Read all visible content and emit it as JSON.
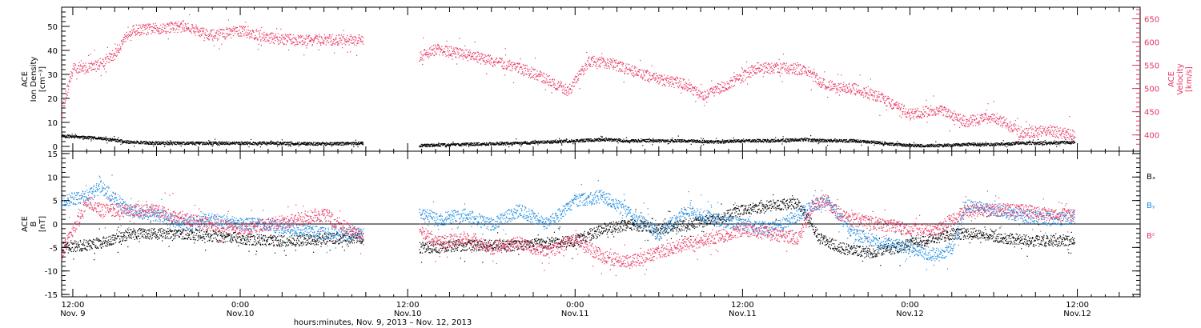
{
  "colors": {
    "axis": "#000000",
    "density": "#000000",
    "velocity": "#e8345f",
    "bx": "#000000",
    "by": "#1a8ae0",
    "bz": "#e8345f"
  },
  "xaxis": {
    "label": "hours:minutes, Nov.  9, 2013 – Nov. 12, 2013",
    "ticks": [
      {
        "t": 0,
        "time": "12:00",
        "date": "Nov. 9"
      },
      {
        "t": 12,
        "time": "0:00",
        "date": "Nov.10"
      },
      {
        "t": 24,
        "time": "12:00",
        "date": "Nov.10"
      },
      {
        "t": 36,
        "time": "0:00",
        "date": "Nov.11"
      },
      {
        "t": 48,
        "time": "12:00",
        "date": "Nov.11"
      },
      {
        "t": 60,
        "time": "0:00",
        "date": "Nov.12"
      },
      {
        "t": 72,
        "time": "12:00",
        "date": "Nov.12"
      }
    ]
  },
  "panel1": {
    "left_label": [
      "ACE",
      "Ion Density",
      "[cm⁻³]"
    ],
    "right_label": [
      "ACE",
      "Velocity",
      "[km/s]"
    ]
  },
  "panel2": {
    "left_label": [
      "ACE",
      "B",
      "[nT]"
    ],
    "legend": [
      "Bₓ",
      "Bᵧ",
      "Bᶻ"
    ]
  },
  "chart_data": [
    {
      "type": "scatter",
      "title": "",
      "xlabel": "hours:minutes, Nov.  9, 2013 – Nov. 12, 2013",
      "x_units": "hours since Nov. 9 12:00",
      "xlim": [
        -0.8,
        76.5
      ],
      "ylabel": "ACE Ion Density [cm^-3]",
      "ylim": [
        -2,
        58
      ],
      "yticks": [
        0,
        10,
        20,
        30,
        40,
        50
      ],
      "y2label": "ACE Velocity [km/s]",
      "y2lim": [
        365,
        675
      ],
      "y2ticks": [
        400,
        450,
        500,
        550,
        600,
        650
      ],
      "series": [
        {
          "name": "Ion Density",
          "axis": "left",
          "gaps": [
            [
              20.8,
              24.8
            ]
          ],
          "x": [
            -0.8,
            2,
            4,
            6,
            10,
            14,
            18,
            20.8,
            24.8,
            28,
            32,
            36,
            38,
            40,
            42,
            44,
            46,
            48,
            50,
            52,
            54,
            56,
            58,
            60,
            62,
            64,
            66,
            68,
            70,
            71.8
          ],
          "y": [
            4.5,
            3.5,
            2,
            1.5,
            1.5,
            1.5,
            1.2,
            1.5,
            0.5,
            1,
            1.5,
            2.5,
            3,
            2.5,
            2.5,
            2.5,
            2,
            2.5,
            2.5,
            3,
            2.5,
            2.5,
            1.5,
            0.5,
            0.5,
            1,
            1,
            1.5,
            1.5,
            2
          ]
        },
        {
          "name": "Velocity",
          "axis": "right",
          "gaps": [
            [
              20.8,
              24.8
            ]
          ],
          "x": [
            -0.8,
            0,
            1,
            2,
            3,
            4,
            6,
            8,
            10,
            12,
            14,
            16,
            18,
            20.8,
            24.8,
            26,
            28,
            30,
            32,
            34,
            35.5,
            37,
            38.5,
            40,
            42,
            44,
            45,
            47,
            49,
            51,
            52.5,
            54,
            56,
            58,
            60,
            62,
            64,
            66,
            68,
            70,
            71.8
          ],
          "y": [
            455,
            545,
            545,
            555,
            575,
            625,
            630,
            635,
            615,
            625,
            610,
            605,
            605,
            605,
            570,
            585,
            575,
            560,
            545,
            520,
            495,
            560,
            555,
            540,
            520,
            510,
            485,
            510,
            545,
            545,
            540,
            505,
            500,
            480,
            445,
            455,
            430,
            440,
            405,
            410,
            400
          ]
        }
      ]
    },
    {
      "type": "scatter",
      "title": "",
      "xlabel": "hours:minutes, Nov.  9, 2013 – Nov. 12, 2013",
      "x_units": "hours since Nov. 9 12:00",
      "xlim": [
        -0.8,
        76.5
      ],
      "ylabel": "ACE B [nT]",
      "ylim": [
        -15.5,
        15.5
      ],
      "yticks": [
        -15,
        -10,
        -5,
        0,
        5,
        10,
        15
      ],
      "series": [
        {
          "name": "Bx",
          "gaps": [
            [
              20.8,
              24.8
            ]
          ],
          "x": [
            -0.8,
            2,
            4,
            6,
            8,
            10,
            12,
            14,
            16,
            18,
            20.8,
            24.8,
            28,
            32,
            34,
            36,
            38,
            40,
            42,
            44,
            46,
            48,
            50,
            52,
            53.5,
            55,
            57,
            59,
            61,
            63,
            65,
            67,
            69,
            71.8
          ],
          "y": [
            -5,
            -4,
            -2,
            -2,
            -2,
            -2.5,
            -3,
            -3.5,
            -3.5,
            -3,
            -3,
            -5,
            -4.5,
            -4.5,
            -4,
            -3.5,
            -1,
            0,
            -1,
            0,
            1,
            3,
            4,
            4.5,
            -3,
            -5,
            -6,
            -5,
            -3.5,
            -2,
            -2,
            -3,
            -3.5,
            -3.5
          ]
        },
        {
          "name": "By",
          "gaps": [
            [
              20.8,
              24.8
            ]
          ],
          "x": [
            -0.8,
            1,
            2,
            4,
            6,
            8,
            10,
            12,
            14,
            16,
            18,
            20.8,
            24.8,
            26,
            28,
            30,
            32,
            34,
            36,
            38,
            40,
            42,
            44,
            46,
            48,
            50,
            52,
            53,
            54,
            56,
            58,
            60,
            61,
            62,
            63,
            64,
            66,
            68,
            70,
            71.8
          ],
          "y": [
            5,
            6,
            8,
            3,
            2,
            0,
            1,
            0,
            0,
            -1,
            -2,
            -2,
            3,
            1,
            2,
            0,
            3,
            0,
            5,
            6,
            2,
            -2,
            3,
            1,
            0,
            -1,
            2,
            4,
            5,
            -2,
            -4,
            -5,
            -6,
            -6.5,
            -5,
            4,
            3,
            2,
            1,
            1.5
          ]
        },
        {
          "name": "Bz",
          "gaps": [
            [
              20.8,
              24.8
            ]
          ],
          "x": [
            -0.8,
            1,
            2,
            4,
            6,
            8,
            10,
            12,
            14,
            16,
            18,
            20.8,
            24.8,
            26,
            28,
            30,
            32,
            34,
            36,
            38,
            40,
            42,
            44,
            46,
            48,
            50,
            52,
            53,
            54,
            55,
            56,
            58,
            60,
            62,
            64,
            66,
            68,
            70,
            71.8
          ],
          "y": [
            -6,
            5,
            3,
            3,
            3,
            1,
            0,
            -1,
            0,
            1,
            2,
            -3,
            -1,
            -4,
            -3,
            -5,
            -4,
            -6,
            -3,
            -7,
            -8,
            -6,
            -4,
            -3,
            -1,
            -2,
            -3,
            4,
            5,
            2,
            1,
            0,
            -1,
            -1,
            3,
            3,
            3,
            2,
            2
          ]
        }
      ]
    }
  ]
}
